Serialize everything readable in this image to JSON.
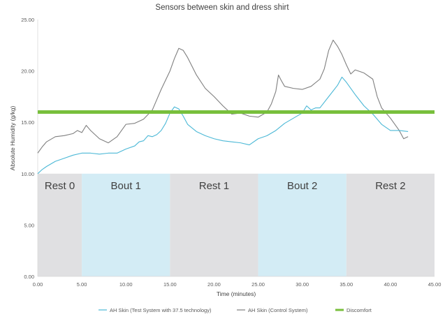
{
  "chart_data": {
    "type": "line",
    "title": "Sensors between skin and dress shirt",
    "xlabel": "Time (minutes)",
    "ylabel": "Absolute Humidity (g/kg)",
    "xlim": [
      0,
      45
    ],
    "ylim": [
      0,
      25
    ],
    "x_ticks": [
      "0.00",
      "5.00",
      "10.00",
      "15.00",
      "20.00",
      "25.00",
      "30.00",
      "35.00",
      "40.00",
      "45.00"
    ],
    "y_ticks": [
      "0.00",
      "5.00",
      "10.00",
      "15.00",
      "20.00",
      "25.00"
    ],
    "grid": false,
    "legend_position": "bottom",
    "phases": [
      {
        "label": "Rest 0",
        "x0": 0,
        "x1": 5,
        "y_top": 10,
        "color": "#e0e0e2"
      },
      {
        "label": "Bout 1",
        "x0": 5,
        "x1": 15,
        "y_top": 10,
        "color": "#d3ecf5"
      },
      {
        "label": "Rest 1",
        "x0": 15,
        "x1": 25,
        "y_top": 10,
        "color": "#e0e0e2"
      },
      {
        "label": "Bout 2",
        "x0": 25,
        "x1": 35,
        "y_top": 10,
        "color": "#d3ecf5"
      },
      {
        "label": "Rest 2",
        "x0": 35,
        "x1": 45,
        "y_top": 10,
        "color": "#e0e0e2"
      }
    ],
    "series": [
      {
        "name": "AH Skin (Test System with 37.5 technology)",
        "color": "#4bb8d6",
        "points": [
          [
            0,
            10.0
          ],
          [
            0.5,
            10.4
          ],
          [
            1,
            10.7
          ],
          [
            2,
            11.2
          ],
          [
            3,
            11.5
          ],
          [
            4,
            11.8
          ],
          [
            5,
            12.0
          ],
          [
            6,
            12.0
          ],
          [
            7,
            11.9
          ],
          [
            8,
            12.0
          ],
          [
            9,
            12.0
          ],
          [
            10,
            12.4
          ],
          [
            11,
            12.7
          ],
          [
            11.5,
            13.1
          ],
          [
            12,
            13.2
          ],
          [
            12.5,
            13.7
          ],
          [
            13,
            13.6
          ],
          [
            13.5,
            13.8
          ],
          [
            14,
            14.2
          ],
          [
            14.5,
            14.9
          ],
          [
            15,
            15.9
          ],
          [
            15.5,
            16.5
          ],
          [
            16,
            16.3
          ],
          [
            16.5,
            15.6
          ],
          [
            17,
            14.8
          ],
          [
            18,
            14.1
          ],
          [
            19,
            13.7
          ],
          [
            20,
            13.4
          ],
          [
            21,
            13.2
          ],
          [
            22,
            13.1
          ],
          [
            23,
            13.0
          ],
          [
            24,
            12.8
          ],
          [
            25,
            13.4
          ],
          [
            26,
            13.7
          ],
          [
            27,
            14.2
          ],
          [
            28,
            14.9
          ],
          [
            29,
            15.4
          ],
          [
            30,
            15.9
          ],
          [
            30.5,
            16.6
          ],
          [
            31,
            16.2
          ],
          [
            31.5,
            16.4
          ],
          [
            32,
            16.4
          ],
          [
            33,
            17.5
          ],
          [
            34,
            18.6
          ],
          [
            34.5,
            19.4
          ],
          [
            35,
            18.9
          ],
          [
            36,
            17.7
          ],
          [
            37,
            16.6
          ],
          [
            38,
            15.8
          ],
          [
            39,
            14.8
          ],
          [
            40,
            14.2
          ],
          [
            41,
            14.2
          ],
          [
            42,
            14.1
          ]
        ]
      },
      {
        "name": "AH Skin (Control System)",
        "color": "#7f7f7f",
        "points": [
          [
            0,
            12.0
          ],
          [
            0.5,
            12.6
          ],
          [
            1,
            13.1
          ],
          [
            2,
            13.6
          ],
          [
            3,
            13.7
          ],
          [
            4,
            13.9
          ],
          [
            4.5,
            14.2
          ],
          [
            5,
            14.0
          ],
          [
            5.5,
            14.7
          ],
          [
            6,
            14.2
          ],
          [
            6.5,
            13.8
          ],
          [
            7,
            13.4
          ],
          [
            8,
            13.0
          ],
          [
            9,
            13.6
          ],
          [
            10,
            14.8
          ],
          [
            11,
            14.9
          ],
          [
            12,
            15.3
          ],
          [
            13,
            16.2
          ],
          [
            13.5,
            17.2
          ],
          [
            14,
            18.2
          ],
          [
            15,
            20.0
          ],
          [
            15.5,
            21.2
          ],
          [
            16,
            22.2
          ],
          [
            16.5,
            22.0
          ],
          [
            17,
            21.3
          ],
          [
            18,
            19.6
          ],
          [
            19,
            18.3
          ],
          [
            20,
            17.5
          ],
          [
            21,
            16.6
          ],
          [
            22,
            15.8
          ],
          [
            23,
            15.9
          ],
          [
            24,
            15.6
          ],
          [
            25,
            15.5
          ],
          [
            26,
            16.0
          ],
          [
            26.5,
            16.8
          ],
          [
            27,
            18.0
          ],
          [
            27.3,
            19.6
          ],
          [
            27.6,
            19.1
          ],
          [
            28,
            18.5
          ],
          [
            29,
            18.3
          ],
          [
            30,
            18.2
          ],
          [
            31,
            18.5
          ],
          [
            32,
            19.2
          ],
          [
            32.5,
            20.2
          ],
          [
            33,
            22.0
          ],
          [
            33.5,
            23.0
          ],
          [
            34,
            22.4
          ],
          [
            34.5,
            21.6
          ],
          [
            35,
            20.6
          ],
          [
            35.5,
            19.7
          ],
          [
            36,
            20.1
          ],
          [
            37,
            19.8
          ],
          [
            38,
            19.2
          ],
          [
            38.5,
            17.5
          ],
          [
            39,
            16.4
          ],
          [
            40,
            15.4
          ],
          [
            41,
            14.2
          ],
          [
            41.5,
            13.4
          ],
          [
            42,
            13.6
          ]
        ]
      },
      {
        "name": "Discomfort",
        "color": "#78bf3c",
        "points": [
          [
            0,
            16
          ],
          [
            45,
            16
          ]
        ]
      }
    ]
  }
}
